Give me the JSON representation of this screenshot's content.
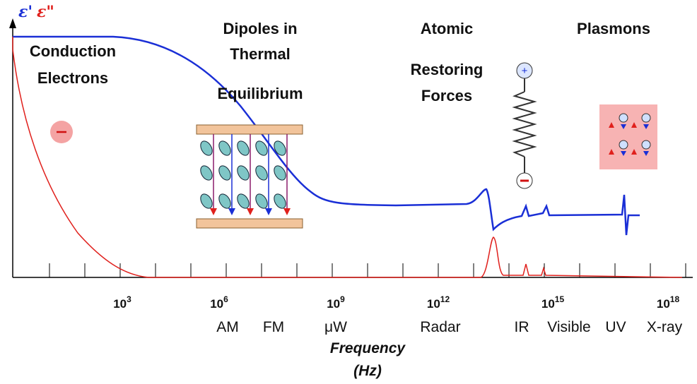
{
  "legend": {
    "real": "ε'",
    "imaginary": "ε\""
  },
  "regions": [
    {
      "lines": [
        "Conduction",
        "Electrons"
      ]
    },
    {
      "lines": [
        "Dipoles in",
        "Thermal",
        "Equilibrium"
      ]
    },
    {
      "lines": [
        "Atomic",
        "Restoring",
        "Forces"
      ]
    },
    {
      "lines": [
        "Plasmons"
      ]
    }
  ],
  "axis": {
    "ticks": [
      {
        "base": "10",
        "exponent": "3"
      },
      {
        "base": "10",
        "exponent": "6"
      },
      {
        "base": "10",
        "exponent": "9"
      },
      {
        "base": "10",
        "exponent": "12"
      },
      {
        "base": "10",
        "exponent": "15"
      },
      {
        "base": "10",
        "exponent": "18"
      }
    ],
    "bands": [
      "AM",
      "FM",
      "μW",
      "Radar",
      "IR",
      "Visible",
      "UV",
      "X-ray"
    ],
    "title": [
      "Frequency",
      "(Hz)"
    ]
  }
}
